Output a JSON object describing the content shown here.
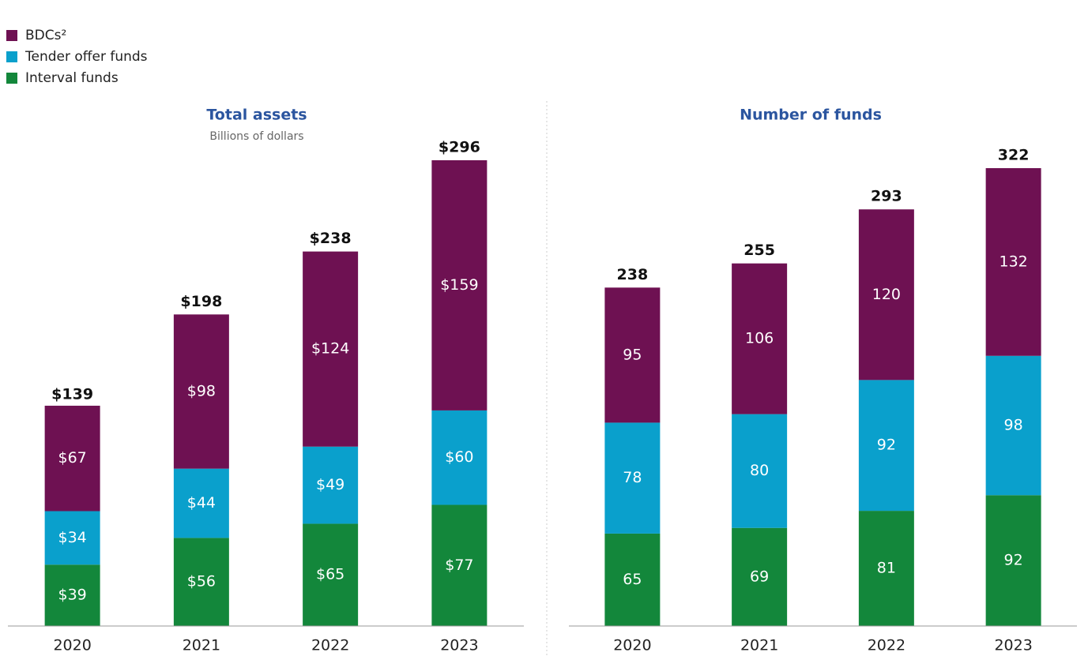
{
  "legend": [
    {
      "name": "BDCs²",
      "color": "#6e1152"
    },
    {
      "name": "Tender offer funds",
      "color": "#0aa0cc"
    },
    {
      "name": "Interval funds",
      "color": "#13873b"
    }
  ],
  "chart_data": [
    {
      "type": "stacked-bar",
      "title": "Total assets",
      "subtitle": "Billions of dollars",
      "categories": [
        "2020",
        "2021",
        "2022",
        "2023"
      ],
      "series": [
        {
          "values": [
            39,
            56,
            65,
            77
          ],
          "value_labels": [
            "$39",
            "$56",
            "$65",
            "$77"
          ]
        },
        {
          "values": [
            34,
            44,
            49,
            60
          ],
          "value_labels": [
            "$34",
            "$44",
            "$49",
            "$60"
          ]
        },
        {
          "values": [
            67,
            98,
            124,
            159
          ],
          "value_labels": [
            "$67",
            "$98",
            "$124",
            "$159"
          ]
        }
      ],
      "totals": [
        139,
        198,
        238,
        296
      ],
      "total_labels": [
        "$139",
        "$198",
        "$238",
        "$296"
      ]
    },
    {
      "type": "stacked-bar",
      "title": "Number of funds",
      "categories": [
        "2020",
        "2021",
        "2022",
        "2023"
      ],
      "series": [
        {
          "values": [
            65,
            69,
            81,
            92
          ]
        },
        {
          "values": [
            78,
            80,
            92,
            98
          ]
        },
        {
          "values": [
            95,
            106,
            120,
            132
          ]
        }
      ],
      "totals": [
        238,
        255,
        293,
        322
      ]
    }
  ]
}
